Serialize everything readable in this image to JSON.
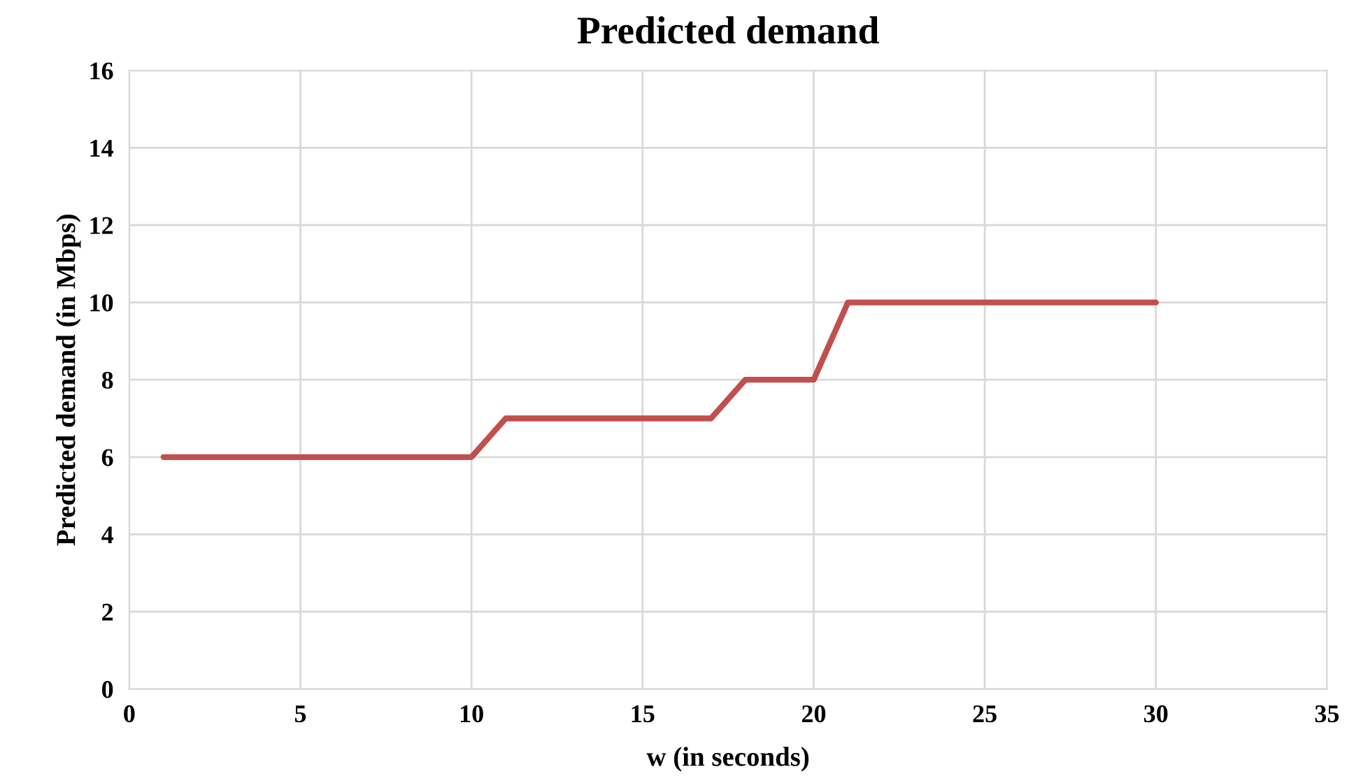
{
  "chart_data": {
    "type": "line",
    "title": "Predicted demand",
    "xlabel": "w (in seconds)",
    "ylabel": "Predicted demand (in Mbps)",
    "x": [
      1,
      2,
      3,
      4,
      5,
      6,
      7,
      8,
      9,
      10,
      11,
      12,
      13,
      14,
      15,
      16,
      17,
      18,
      19,
      20,
      21,
      22,
      23,
      24,
      25,
      26,
      27,
      28,
      29,
      30
    ],
    "series": [
      {
        "color": "#c0504d",
        "values": [
          6,
          6,
          6,
          6,
          6,
          6,
          6,
          6,
          6,
          6,
          7,
          7,
          7,
          7,
          7,
          7,
          7,
          8,
          8,
          8,
          10,
          10,
          10,
          10,
          10,
          10,
          10,
          10,
          10,
          10
        ]
      }
    ],
    "xlim": [
      0,
      35
    ],
    "xticks": [
      0,
      5,
      10,
      15,
      20,
      25,
      30,
      35
    ],
    "ylim": [
      0,
      16
    ],
    "yticks": [
      0,
      2,
      4,
      6,
      8,
      10,
      12,
      14,
      16
    ],
    "grid": true,
    "marker": "none",
    "line_style": "solid"
  }
}
